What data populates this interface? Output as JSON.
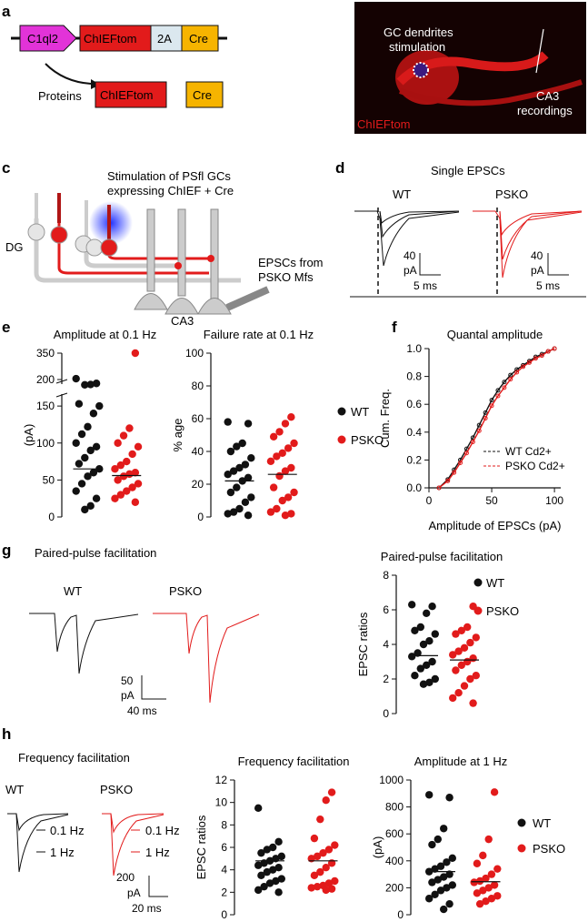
{
  "colors": {
    "red": "#e21b1b",
    "black": "#111111",
    "grey": "#cfcfcf",
    "magenta": "#e233d8",
    "orange": "#f6b400",
    "lightblue": "#dbe8ef",
    "blue": "#2233ff"
  },
  "panel_letters": {
    "a": "a",
    "b": "b",
    "c": "c",
    "d": "d",
    "e": "e",
    "f": "f",
    "g": "g",
    "h": "h"
  },
  "panel_a": {
    "promoter": "C1ql2",
    "gene": "ChIEFtom",
    "linker": "2A",
    "cre": "Cre",
    "proteins_label": "Proteins",
    "protein1": "ChIEFtom",
    "protein2": "Cre"
  },
  "panel_b": {
    "stim_line1": "GC dendrites",
    "stim_line2": "stimulation",
    "rec_line1": "CA3",
    "rec_line2": "recordings",
    "label": "ChIEFtom"
  },
  "panel_c": {
    "title_line1": "Stimulation of PSfl GCs",
    "title_line2": "expressing ChIEF + Cre",
    "dg": "DG",
    "ca3": "CA3",
    "epsc_line1": "EPSCs from",
    "epsc_line2": "PSKO Mfs"
  },
  "panel_d": {
    "title": "Single EPSCs",
    "wt": "WT",
    "psko": "PSKO",
    "scale_y": "40",
    "scale_unit": "pA",
    "scale_x": "5 ms"
  },
  "legend": {
    "wt": "WT",
    "psko": "PSKO"
  },
  "chart_data": [
    {
      "id": "e_amplitude",
      "type": "scatter",
      "title": "Amplitude at 0.1 Hz",
      "ylabel": "(pA)",
      "yticks_lower": [
        "0",
        "50",
        "100",
        "150"
      ],
      "yticks_upper": [
        "200",
        "350"
      ],
      "ylim": [
        0,
        350
      ],
      "series": [
        {
          "name": "WT",
          "color": "#111111",
          "median": 65,
          "values": [
            205,
            178,
            172,
            170,
            153,
            150,
            140,
            122,
            112,
            100,
            95,
            90,
            80,
            72,
            65,
            60,
            55,
            45,
            35,
            25,
            15,
            10
          ]
        },
        {
          "name": "PSKO",
          "color": "#e21b1b",
          "median": 56,
          "values": [
            350,
            120,
            110,
            100,
            95,
            85,
            75,
            70,
            65,
            60,
            58,
            55,
            50,
            45,
            40,
            35,
            30,
            25,
            20
          ]
        }
      ]
    },
    {
      "id": "e_failure",
      "type": "scatter",
      "title": "Failure rate at 0.1 Hz",
      "ylabel": "% age",
      "yticks": [
        "0",
        "20",
        "40",
        "60",
        "80",
        "100"
      ],
      "ylim": [
        0,
        100
      ],
      "series": [
        {
          "name": "WT",
          "color": "#111111",
          "median": 22,
          "values": [
            58,
            57,
            45,
            43,
            40,
            36,
            32,
            30,
            28,
            26,
            24,
            22,
            18,
            15,
            12,
            9,
            5,
            3,
            2,
            1
          ]
        },
        {
          "name": "PSKO",
          "color": "#e21b1b",
          "median": 26,
          "values": [
            61,
            57,
            52,
            49,
            45,
            42,
            39,
            37,
            34,
            30,
            28,
            25,
            18,
            15,
            12,
            10,
            5,
            3,
            2,
            1
          ]
        }
      ]
    },
    {
      "id": "f_quantal",
      "type": "line",
      "title": "Quantal amplitude",
      "xlabel": "Amplitude of EPSCs (pA)",
      "ylabel": "Cum. Freq.",
      "xticks": [
        "0",
        "50",
        "100"
      ],
      "yticks": [
        "0.0",
        "0.2",
        "0.4",
        "0.6",
        "0.8",
        "1.0"
      ],
      "xlim": [
        0,
        105
      ],
      "ylim": [
        0,
        1
      ],
      "series": [
        {
          "name": "WT Cd2+",
          "color": "#111111",
          "x": [
            8,
            15,
            20,
            25,
            30,
            35,
            40,
            45,
            50,
            55,
            60,
            65,
            70,
            75,
            80,
            85,
            90,
            95,
            100
          ],
          "y": [
            0.0,
            0.06,
            0.13,
            0.2,
            0.28,
            0.36,
            0.45,
            0.54,
            0.63,
            0.7,
            0.76,
            0.81,
            0.85,
            0.88,
            0.91,
            0.94,
            0.96,
            0.98,
            1.0
          ]
        },
        {
          "name": "PSKO Cd2+",
          "color": "#e21b1b",
          "x": [
            8,
            15,
            20,
            25,
            30,
            35,
            40,
            45,
            50,
            55,
            60,
            65,
            70,
            75,
            80,
            85,
            90,
            95,
            100
          ],
          "y": [
            0.0,
            0.05,
            0.11,
            0.18,
            0.25,
            0.33,
            0.41,
            0.5,
            0.59,
            0.66,
            0.72,
            0.78,
            0.83,
            0.87,
            0.9,
            0.93,
            0.95,
            0.98,
            1.0
          ]
        }
      ]
    },
    {
      "id": "g_ppf",
      "type": "scatter",
      "title": "Paired-pulse facilitation",
      "ylabel": "EPSC ratios",
      "yticks": [
        "0",
        "2",
        "4",
        "6",
        "8"
      ],
      "ylim": [
        0,
        8
      ],
      "series": [
        {
          "name": "WT",
          "color": "#111111",
          "median": 3.35,
          "values": [
            6.3,
            6.2,
            5.8,
            5.0,
            4.8,
            4.6,
            4.2,
            4.0,
            3.5,
            3.3,
            3.0,
            2.8,
            2.6,
            2.2,
            2.0,
            1.8,
            1.7
          ]
        },
        {
          "name": "PSKO",
          "color": "#e21b1b",
          "median": 3.1,
          "values": [
            6.2,
            5.0,
            4.8,
            4.6,
            4.4,
            4.1,
            3.8,
            3.6,
            3.4,
            3.2,
            3.0,
            2.8,
            2.5,
            2.2,
            2.0,
            1.6,
            1.2,
            0.9,
            0.6
          ]
        }
      ]
    },
    {
      "id": "h_freq",
      "type": "scatter",
      "title": "Frequency facilitation",
      "ylabel": "EPSC ratios",
      "yticks": [
        "0",
        "2",
        "4",
        "6",
        "8",
        "10",
        "12"
      ],
      "ylim": [
        0,
        12
      ],
      "series": [
        {
          "name": "WT",
          "color": "#111111",
          "median": 4.8,
          "values": [
            9.5,
            6.5,
            6.0,
            5.8,
            5.5,
            5.2,
            5.0,
            4.8,
            4.6,
            4.4,
            4.2,
            4.0,
            3.8,
            3.5,
            3.2,
            3.0,
            2.8,
            2.5,
            2.2,
            2.0
          ]
        },
        {
          "name": "PSKO",
          "color": "#e21b1b",
          "median": 4.8,
          "values": [
            10.9,
            10.2,
            8.5,
            6.8,
            6.2,
            5.8,
            5.5,
            5.2,
            5.0,
            4.6,
            4.2,
            3.8,
            3.5,
            3.0,
            2.8,
            2.6,
            2.5,
            2.4,
            2.3,
            2.2
          ]
        }
      ]
    },
    {
      "id": "h_amp",
      "type": "scatter",
      "title": "Amplitude at 1 Hz",
      "ylabel": "(pA)",
      "yticks": [
        "0",
        "200",
        "400",
        "600",
        "800",
        "1000"
      ],
      "ylim": [
        0,
        1000
      ],
      "series": [
        {
          "name": "WT",
          "color": "#111111",
          "median": 320,
          "values": [
            890,
            870,
            640,
            560,
            520,
            420,
            390,
            360,
            340,
            320,
            300,
            280,
            260,
            240,
            220,
            200,
            180,
            150,
            120,
            80,
            40
          ]
        },
        {
          "name": "PSKO",
          "color": "#e21b1b",
          "median": 245,
          "values": [
            910,
            560,
            440,
            380,
            340,
            300,
            270,
            250,
            240,
            220,
            200,
            180,
            160,
            140,
            120,
            100,
            80
          ]
        }
      ]
    }
  ],
  "panel_g": {
    "title": "Paired-pulse facilitation",
    "wt": "WT",
    "psko": "PSKO",
    "scale_y": "50",
    "scale_unit": "pA",
    "scale_x": "40 ms"
  },
  "panel_h": {
    "title": "Frequency facilitation",
    "wt": "WT",
    "psko": "PSKO",
    "freq1": "0.1 Hz",
    "freq2": "1 Hz",
    "scale_y": "200",
    "scale_unit": "pA",
    "scale_x": "20 ms"
  }
}
